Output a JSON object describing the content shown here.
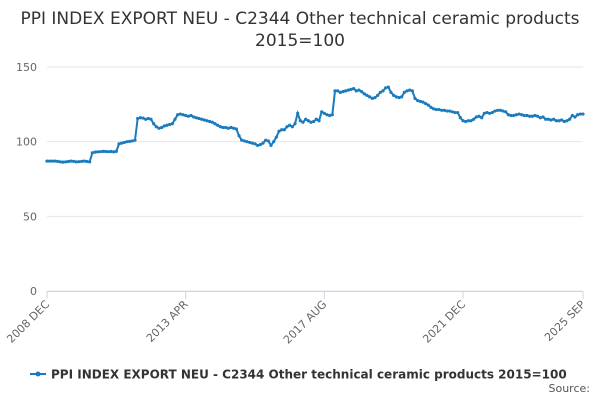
{
  "chart_data": {
    "type": "line",
    "title": "PPI INDEX EXPORT NEU - C2344 Other technical ceramic products 2015=100",
    "source": "Source:",
    "categories": [
      "2008 DEC",
      null,
      null,
      null,
      null,
      null,
      null,
      null,
      null,
      null,
      null,
      null,
      null,
      null,
      null,
      null,
      null,
      null,
      null,
      null,
      null,
      null,
      null,
      null,
      null,
      null,
      null,
      null,
      null,
      null,
      null,
      null,
      null,
      null,
      null,
      null,
      null,
      null,
      null,
      null,
      null,
      null,
      null,
      null,
      null,
      null,
      null,
      null,
      null,
      null,
      null,
      null,
      "2013 APR",
      null,
      null,
      null,
      null,
      null,
      null,
      null,
      null,
      null,
      null,
      null,
      null,
      null,
      null,
      null,
      null,
      null,
      null,
      null,
      null,
      null,
      null,
      null,
      null,
      null,
      null,
      null,
      null,
      null,
      null,
      null,
      null,
      null,
      null,
      null,
      null,
      null,
      null,
      null,
      null,
      null,
      null,
      null,
      null,
      null,
      null,
      null,
      null,
      null,
      null,
      null,
      "2017 AUG",
      null,
      null,
      null,
      null,
      null,
      null,
      null,
      null,
      null,
      null,
      null,
      null,
      null,
      null,
      null,
      null,
      null,
      null,
      null,
      null,
      null,
      null,
      null,
      null,
      null,
      null,
      null,
      null,
      null,
      null,
      null,
      null,
      null,
      null,
      null,
      null,
      null,
      null,
      null,
      null,
      null,
      null,
      null,
      null,
      null,
      null,
      null,
      null,
      null,
      null,
      null,
      "2021 DEC",
      null,
      null,
      null,
      null,
      null,
      null,
      null,
      null,
      null,
      null,
      null,
      null,
      null,
      null,
      null,
      null,
      null,
      null,
      null,
      null,
      null,
      null,
      null,
      null,
      null,
      null,
      null,
      null,
      null,
      null,
      null,
      null,
      null,
      null,
      null,
      null,
      null,
      null,
      null,
      null,
      null,
      null,
      null,
      null,
      "2025 SEP"
    ],
    "series": [
      {
        "name": "PPI INDEX EXPORT NEU - C2344 Other technical ceramic products 2015=100",
        "color": "#1a7bbd",
        "values": [
          87,
          87,
          87,
          87,
          86.8,
          86.5,
          86.3,
          86.5,
          86.7,
          87,
          86.8,
          86.5,
          86.6,
          86.8,
          87,
          86.7,
          86.5,
          92.5,
          93,
          93.2,
          93.3,
          93.5,
          93.4,
          93.3,
          93.4,
          93.2,
          93.5,
          98.5,
          99,
          99.5,
          100,
          100.2,
          100.5,
          101,
          115.5,
          116,
          115.8,
          115,
          115.5,
          115,
          112,
          110,
          109,
          109.5,
          110.5,
          111,
          111.5,
          112,
          115,
          118,
          118.5,
          118,
          117.5,
          117,
          117.5,
          116.5,
          116,
          115.5,
          115,
          114.5,
          114,
          113.5,
          113,
          112,
          111,
          110,
          109.5,
          109.5,
          109,
          109.5,
          109,
          108.5,
          104,
          101,
          100.5,
          100,
          99.5,
          99,
          98.5,
          97.5,
          98,
          99,
          101,
          100.5,
          97.5,
          100,
          103,
          107,
          108,
          108,
          110,
          111,
          110,
          112,
          119,
          114,
          113,
          115,
          114,
          113,
          113.5,
          115,
          114,
          120,
          119,
          118,
          117.5,
          118,
          134,
          134,
          133,
          133.5,
          134,
          134.5,
          135,
          135.5,
          134,
          134.5,
          133.5,
          132,
          131,
          130,
          129,
          129.5,
          131,
          133,
          134,
          136,
          136.5,
          133,
          131,
          130,
          129.5,
          130,
          133,
          134,
          134.5,
          134,
          129,
          127.5,
          127,
          126.5,
          125.5,
          124.5,
          123,
          122,
          121.5,
          121.5,
          121,
          121,
          120.5,
          120.5,
          120,
          119.5,
          119.5,
          116,
          114,
          113.5,
          114,
          114,
          115,
          116.5,
          117,
          116,
          119,
          119.5,
          119,
          119.5,
          120.5,
          121,
          121,
          120.5,
          120,
          118,
          117.5,
          117.5,
          118,
          118.5,
          118,
          117.5,
          117.5,
          117,
          117,
          117.5,
          117,
          116,
          116.5,
          115,
          115,
          114.5,
          115,
          114,
          114,
          114.5,
          113.5,
          114,
          115,
          117.5,
          116.5,
          118,
          118.5,
          118.5
        ]
      }
    ],
    "ylim": [
      0,
      150
    ],
    "yticks": [
      0,
      50,
      100,
      150
    ],
    "grid": true
  }
}
